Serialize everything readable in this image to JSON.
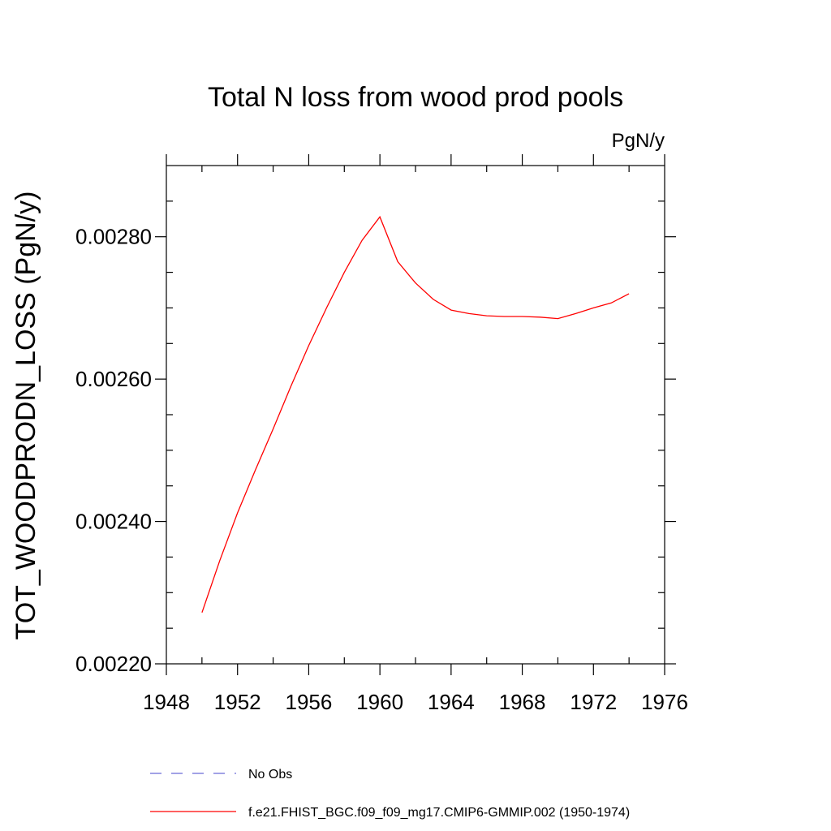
{
  "chart_data": {
    "type": "line",
    "title": "Total N loss from wood prod pools",
    "units_label": "PgN/y",
    "xlabel": "",
    "ylabel": "TOT_WOODPRODN_LOSS  (PgN/y)",
    "xlim": [
      1948,
      1976
    ],
    "ylim": [
      0.0022,
      0.0029
    ],
    "x_ticks": [
      "1948",
      "1952",
      "1956",
      "1960",
      "1964",
      "1968",
      "1972",
      "1976"
    ],
    "y_ticks": [
      "0.00220",
      "0.00240",
      "0.00260",
      "0.00280"
    ],
    "grid": false,
    "legend_position": "bottom",
    "series": [
      {
        "name": "No Obs",
        "color": "#6b6bd6",
        "dash": "dashed",
        "x": [],
        "values": []
      },
      {
        "name": "f.e21.FHIST_BGC.f09_f09_mg17.CMIP6-GMMIP.002 (1950-1974)",
        "color": "#ff0000",
        "dash": "solid",
        "x": [
          1950,
          1951,
          1952,
          1953,
          1954,
          1955,
          1956,
          1957,
          1958,
          1959,
          1960,
          1961,
          1962,
          1963,
          1964,
          1965,
          1966,
          1967,
          1968,
          1969,
          1970,
          1971,
          1972,
          1973,
          1974
        ],
        "values": [
          0.002272,
          0.002345,
          0.002412,
          0.002472,
          0.00253,
          0.00259,
          0.002647,
          0.0027,
          0.00275,
          0.002795,
          0.002828,
          0.002765,
          0.002735,
          0.002712,
          0.002697,
          0.002692,
          0.002689,
          0.002688,
          0.002688,
          0.002687,
          0.002685,
          0.002692,
          0.0027,
          0.002707,
          0.00272
        ]
      }
    ]
  }
}
